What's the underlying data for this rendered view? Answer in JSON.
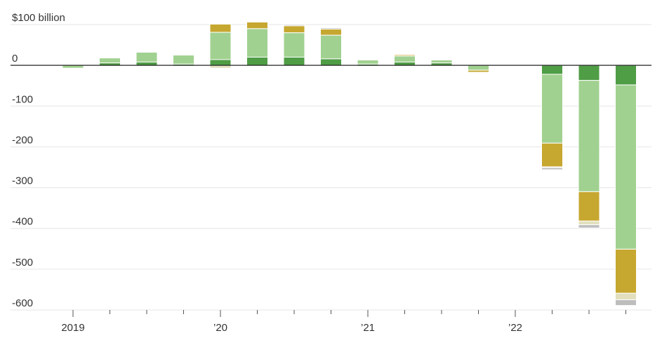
{
  "chart_data": {
    "type": "bar",
    "stacked": true,
    "title": "",
    "xlabel": "",
    "ylabel": "",
    "y_unit_label": "$100 billion",
    "ylim": [
      -600,
      100
    ],
    "y_ticks": [
      {
        "value": 100,
        "label": "$100 billion"
      },
      {
        "value": 0,
        "label": "0"
      },
      {
        "value": -100,
        "label": "-100"
      },
      {
        "value": -200,
        "label": "-200"
      },
      {
        "value": -300,
        "label": "-300"
      },
      {
        "value": -400,
        "label": "-400"
      },
      {
        "value": -500,
        "label": "-500"
      },
      {
        "value": -600,
        "label": "-600"
      }
    ],
    "x_tick_labels": [
      {
        "quarter_index": 0,
        "label": "2019"
      },
      {
        "quarter_index": 4,
        "label": "’20"
      },
      {
        "quarter_index": 8,
        "label": "’21"
      },
      {
        "quarter_index": 12,
        "label": "’22"
      }
    ],
    "grid": true,
    "legend": "none",
    "categories": [
      "2019 Q1",
      "2019 Q2",
      "2019 Q3",
      "2019 Q4",
      "2020 Q1",
      "2020 Q2",
      "2020 Q3",
      "2020 Q4",
      "2021 Q1",
      "2021 Q2",
      "2021 Q3",
      "2021 Q4",
      "2022 Q1",
      "2022 Q2",
      "2022 Q3",
      "2022 Q4"
    ],
    "series": [
      {
        "color": "#4f9d45",
        "values": [
          0,
          6,
          8,
          3,
          14,
          20,
          20,
          16,
          3,
          8,
          6,
          0,
          0,
          -22,
          -37,
          -48
        ]
      },
      {
        "color": "#a1d190",
        "values": [
          -7,
          12,
          24,
          22,
          67,
          70,
          60,
          58,
          10,
          15,
          7,
          -12,
          0,
          -169,
          -273,
          -403
        ]
      },
      {
        "color": "#c6a730",
        "values": [
          0,
          0,
          0,
          0,
          20,
          16,
          17,
          15,
          0,
          3,
          0,
          -5,
          0,
          -58,
          -72,
          -108
        ]
      },
      {
        "color": "#e2dfbe",
        "values": [
          0,
          0,
          0,
          0,
          -7,
          0,
          0,
          0,
          0,
          0,
          0,
          0,
          0,
          -2,
          -9,
          -16
        ]
      },
      {
        "color": "#bdbdbd",
        "values": [
          0,
          0,
          0,
          0,
          0,
          0,
          3,
          3,
          0,
          0,
          0,
          0,
          0,
          -5,
          -8,
          -14
        ]
      }
    ]
  }
}
